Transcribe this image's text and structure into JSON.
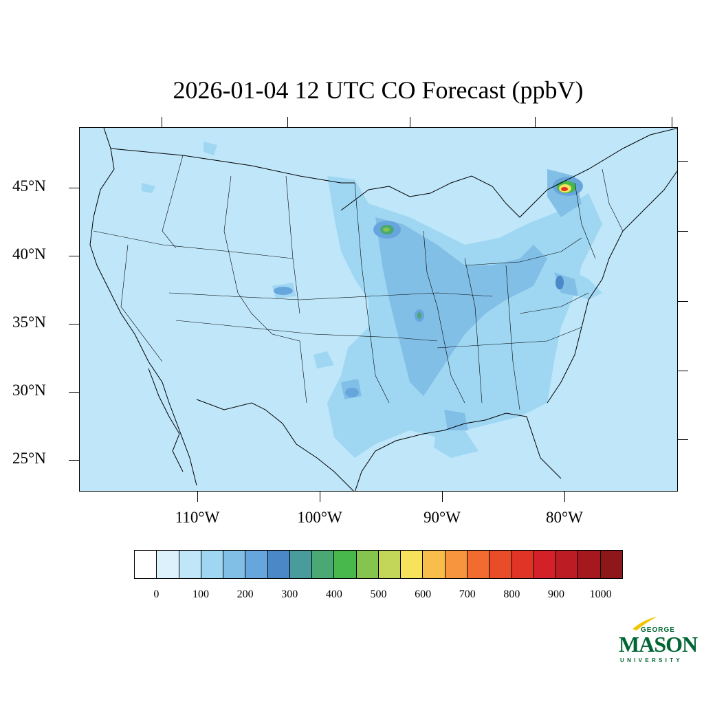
{
  "title": "2026-01-04 12 UTC CO Forecast (ppbV)",
  "lat_labels": [
    "45°N",
    "40°N",
    "35°N",
    "30°N",
    "25°N"
  ],
  "lon_labels": [
    "110°W",
    "100°W",
    "90°W",
    "80°W"
  ],
  "colorbar": {
    "labels": [
      "0",
      "100",
      "200",
      "300",
      "400",
      "500",
      "600",
      "700",
      "800",
      "900",
      "1000"
    ],
    "colors": [
      "#ffffff",
      "#dcf1fb",
      "#bfe6f9",
      "#9fd7f3",
      "#82bfe6",
      "#67a6dc",
      "#4a88c7",
      "#4a9c9c",
      "#4aa874",
      "#48b84c",
      "#86c450",
      "#c3d65a",
      "#f7e35b",
      "#f8bd4a",
      "#f6953d",
      "#f36c2f",
      "#e84c29",
      "#e03427",
      "#d42129",
      "#bc1c24",
      "#a5191e",
      "#8e171a"
    ]
  },
  "logo": {
    "line1": "GEORGE",
    "line2": "MASON",
    "line3": "UNIVERSITY"
  },
  "colors": {
    "background": "#bfe6f9",
    "boundary": "#000000"
  }
}
